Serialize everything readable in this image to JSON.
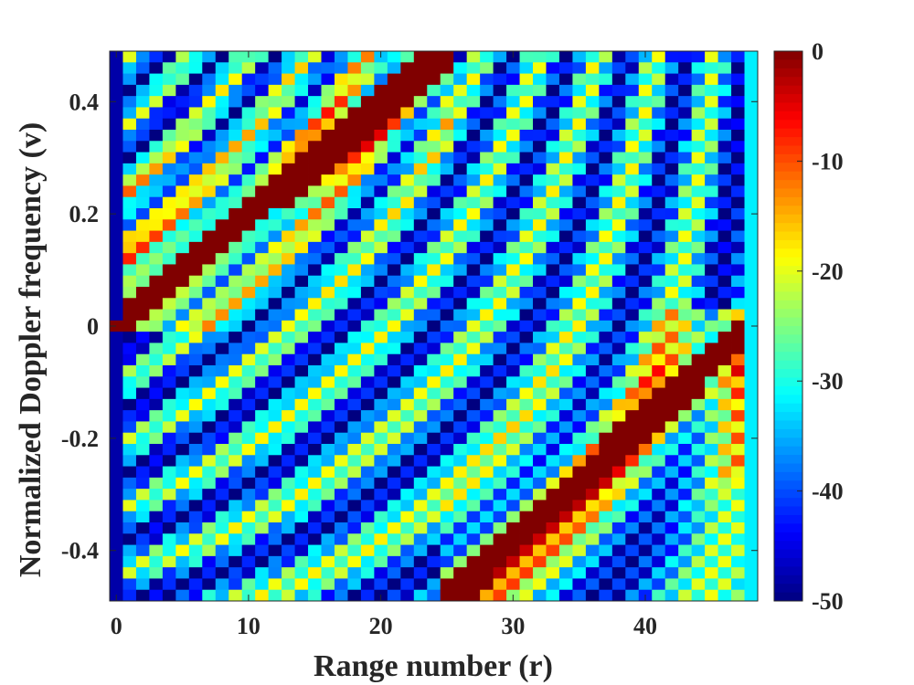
{
  "chart_data": {
    "type": "heatmap",
    "title": "",
    "xlabel": "Range number (r)",
    "ylabel": "Normalized Doppler frequency (v)",
    "x_range": [
      -0.5,
      48.5
    ],
    "y_range": [
      -0.49,
      0.49
    ],
    "n_cols": 49,
    "n_rows": 49,
    "x_ticks": [
      0,
      10,
      20,
      30,
      40
    ],
    "x_tick_labels": [
      "0",
      "10",
      "20",
      "30",
      "40"
    ],
    "y_ticks": [
      0.4,
      0.2,
      0,
      -0.2,
      -0.4
    ],
    "y_tick_labels": [
      "0.4",
      "0.2",
      "0",
      "-0.2",
      "-0.4"
    ],
    "colorbar": {
      "range": [
        -50,
        0
      ],
      "ticks": [
        0,
        -10,
        -20,
        -30,
        -40,
        -50
      ],
      "tick_labels": [
        "0",
        "-10",
        "-20",
        "-30",
        "-40",
        "-50"
      ],
      "colormap": "jet"
    },
    "value_unit": "dB",
    "ridges": [
      {
        "from": [
          0,
          0
        ],
        "to": [
          25,
          0.49
        ],
        "peak_db": 0
      },
      {
        "from": [
          25,
          -0.49
        ],
        "to": [
          48,
          0
        ],
        "peak_db": 0
      }
    ],
    "grid": false
  }
}
